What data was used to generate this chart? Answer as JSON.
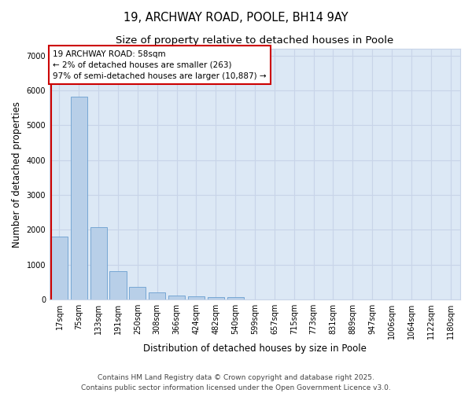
{
  "title1": "19, ARCHWAY ROAD, POOLE, BH14 9AY",
  "title2": "Size of property relative to detached houses in Poole",
  "xlabel": "Distribution of detached houses by size in Poole",
  "ylabel": "Number of detached properties",
  "categories": [
    "17sqm",
    "75sqm",
    "133sqm",
    "191sqm",
    "250sqm",
    "308sqm",
    "366sqm",
    "424sqm",
    "482sqm",
    "540sqm",
    "599sqm",
    "657sqm",
    "715sqm",
    "773sqm",
    "831sqm",
    "889sqm",
    "947sqm",
    "1006sqm",
    "1064sqm",
    "1122sqm",
    "1180sqm"
  ],
  "values": [
    1800,
    5820,
    2080,
    810,
    360,
    210,
    125,
    100,
    80,
    60,
    0,
    0,
    0,
    0,
    0,
    0,
    0,
    0,
    0,
    0,
    0
  ],
  "bar_color": "#b8cfe8",
  "bar_edge_color": "#6a9fd0",
  "red_line_bar_index": 0,
  "marker_color": "#cc0000",
  "annotation_text": "19 ARCHWAY ROAD: 58sqm\n← 2% of detached houses are smaller (263)\n97% of semi-detached houses are larger (10,887) →",
  "annotation_box_color": "#ffffff",
  "annotation_box_edge_color": "#cc0000",
  "ylim": [
    0,
    7200
  ],
  "yticks": [
    0,
    1000,
    2000,
    3000,
    4000,
    5000,
    6000,
    7000
  ],
  "grid_color": "#c8d4e8",
  "background_color": "#dce8f5",
  "footer1": "Contains HM Land Registry data © Crown copyright and database right 2025.",
  "footer2": "Contains public sector information licensed under the Open Government Licence v3.0.",
  "title_fontsize": 10.5,
  "subtitle_fontsize": 9.5,
  "axis_label_fontsize": 8.5,
  "tick_fontsize": 7,
  "annotation_fontsize": 7.5,
  "footer_fontsize": 6.5
}
